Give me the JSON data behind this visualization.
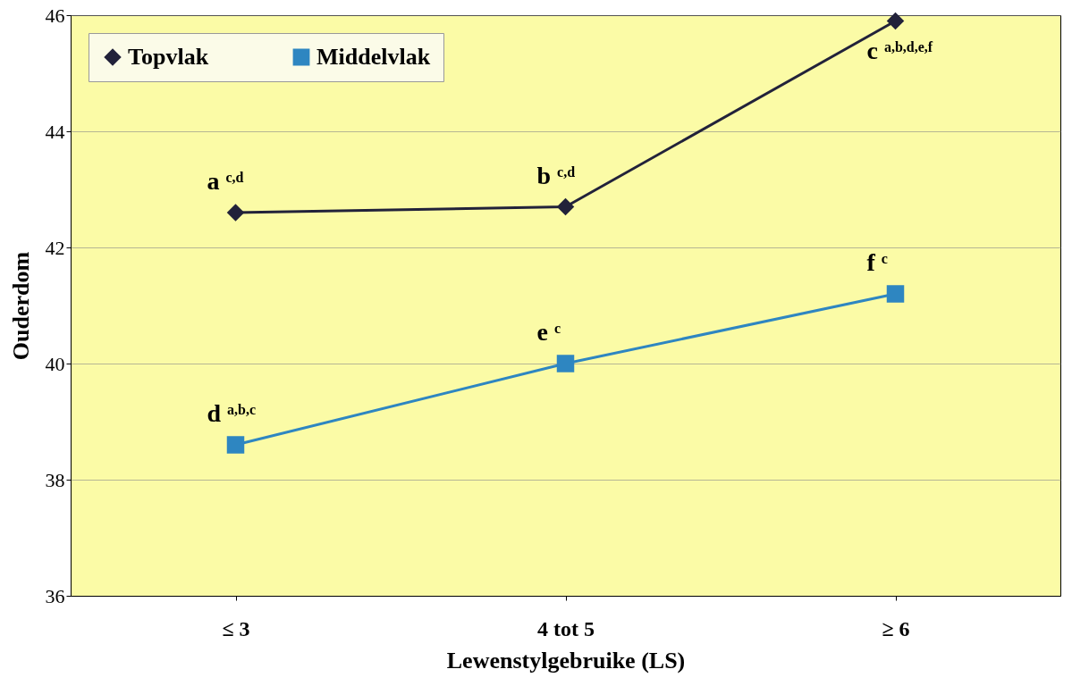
{
  "chart_data": {
    "type": "line",
    "xlabel": "Lewenstylgebruike (LS)",
    "ylabel": "Ouderdom",
    "categories": [
      "≤ 3",
      "4 tot 5",
      "≥ 6"
    ],
    "series": [
      {
        "name": "Topvlak",
        "color": "#22223a",
        "marker": "diamond",
        "values": [
          42.6,
          42.7,
          45.9
        ]
      },
      {
        "name": "Middelvlak",
        "color": "#2e86c1",
        "marker": "square",
        "values": [
          38.6,
          40.0,
          41.2
        ]
      }
    ],
    "ylim": [
      36,
      46
    ],
    "yticks": [
      36,
      38,
      40,
      42,
      44,
      46
    ],
    "grid": "y",
    "legend": "top left",
    "annotations": [
      {
        "text": "a $^{c,d}$",
        "x": "≤ 3",
        "y": 42.6
      },
      {
        "text": "b $^{c,d}$",
        "x": "4 tot 5",
        "y": 42.7
      },
      {
        "text": "c $^{a,b,d,e,f}$",
        "x": "≥ 6",
        "y": 45.9
      },
      {
        "text": "d $^{a,b,c}$",
        "x": "≤ 3",
        "y": 38.6
      },
      {
        "text": "e $^{c}$",
        "x": "4 tot 5",
        "y": 40.0
      },
      {
        "text": "f $^{c}$",
        "x": "≥ 6",
        "y": 41.2
      }
    ]
  }
}
